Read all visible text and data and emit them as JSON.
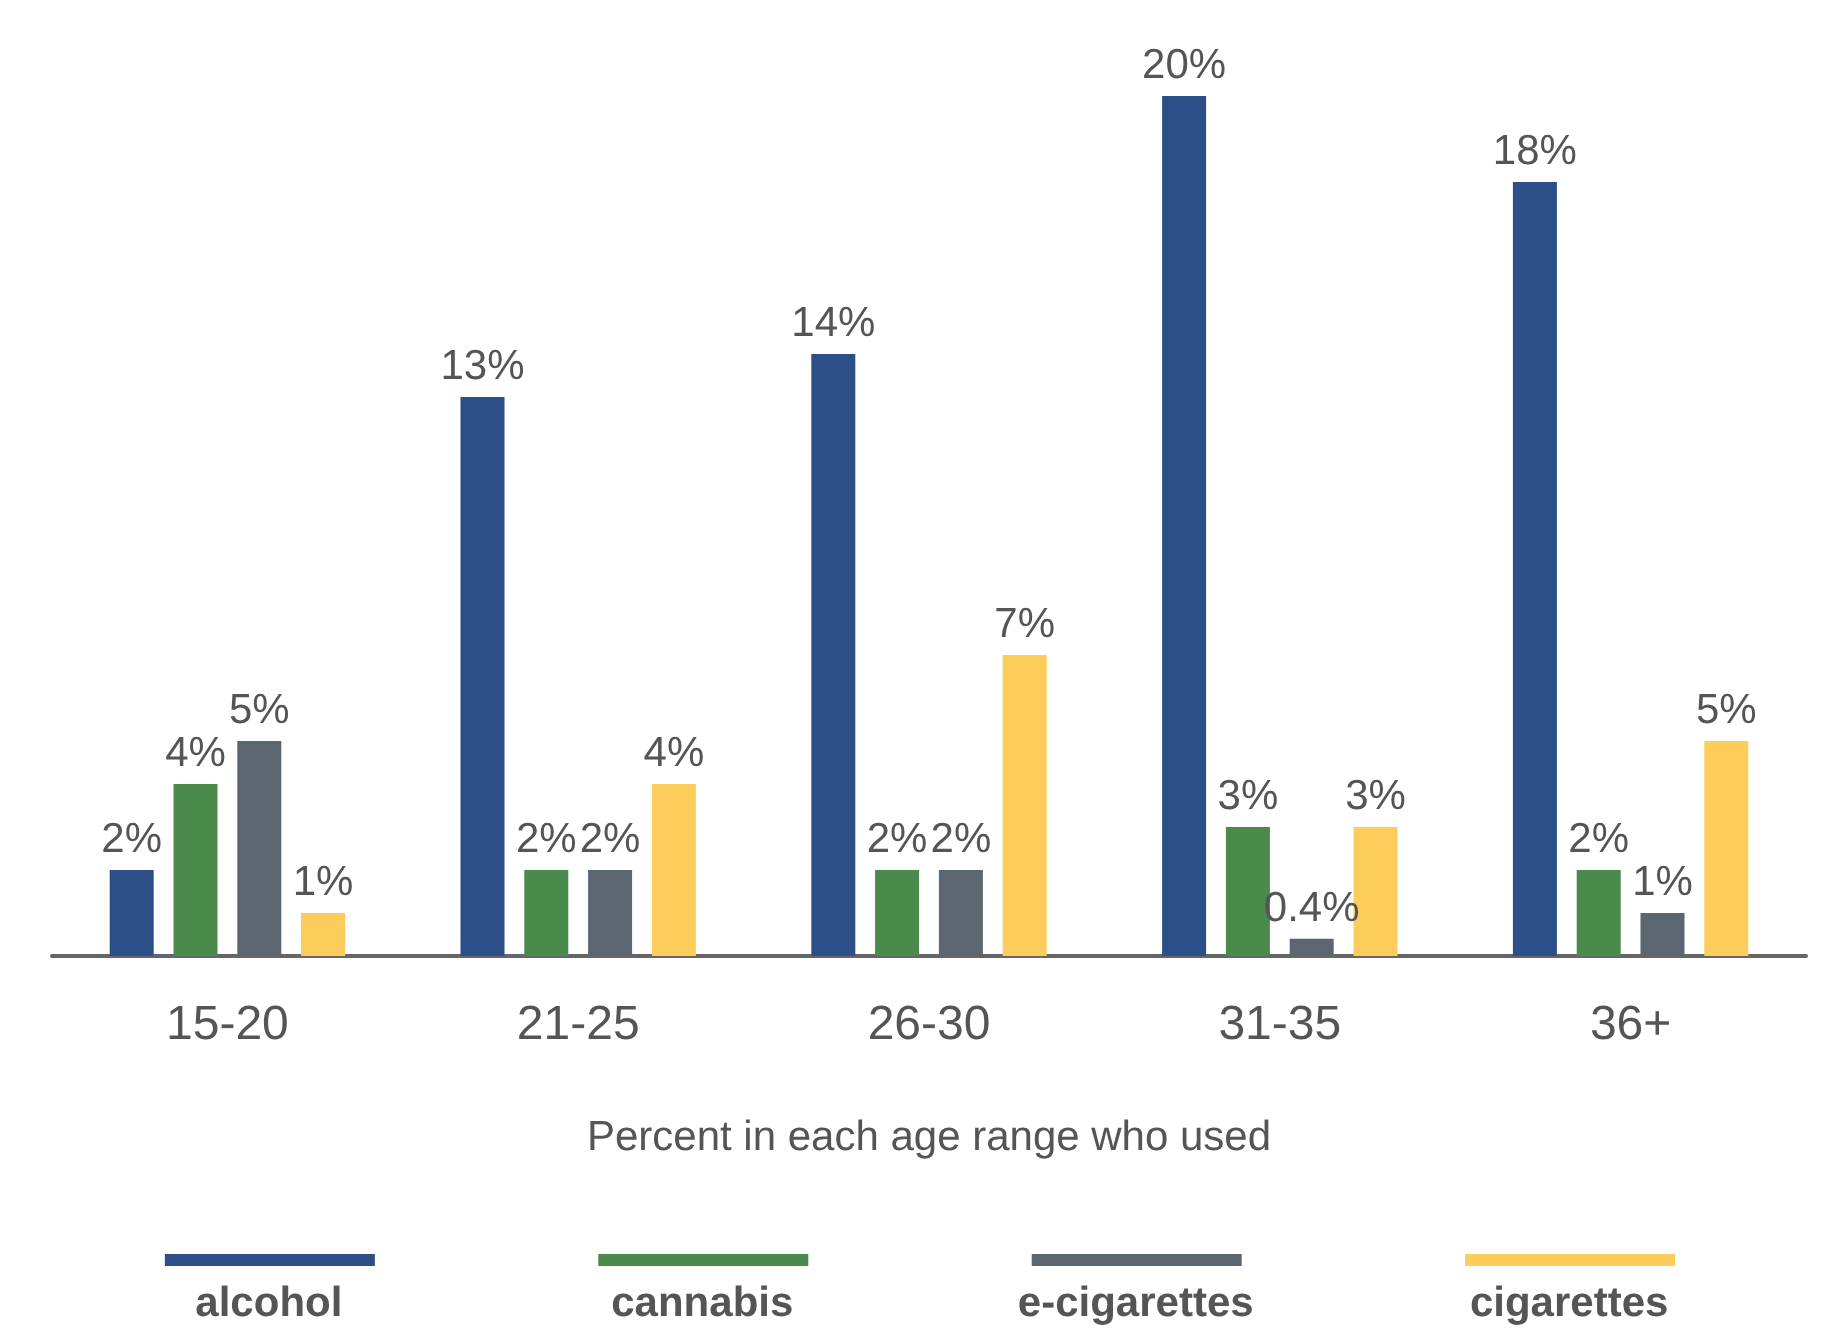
{
  "chart_data": {
    "type": "bar",
    "xlabel": "Percent in each age range who used",
    "categories": [
      "15-20",
      "21-25",
      "26-30",
      "31-35",
      "36+"
    ],
    "legend": "bottom",
    "series": [
      {
        "name": "alcohol",
        "color": "#2b4f86",
        "values": [
          2,
          13,
          14,
          20,
          18
        ],
        "value_labels": [
          "2%",
          "13%",
          "14%",
          "20%",
          "18%"
        ]
      },
      {
        "name": "cannabis",
        "color": "#4a8a4a",
        "values": [
          4,
          2,
          2,
          3,
          2
        ],
        "value_labels": [
          "4%",
          "2%",
          "2%",
          "3%",
          "2%"
        ]
      },
      {
        "name": "e-cigarettes",
        "color": "#5c6670",
        "values": [
          5,
          2,
          2,
          0.4,
          1
        ],
        "value_labels": [
          "5%",
          "2%",
          "2%",
          "0.4%",
          "1%"
        ]
      },
      {
        "name": "cigarettes",
        "color": "#fccd5a",
        "values": [
          1,
          4,
          7,
          3,
          5
        ],
        "value_labels": [
          "1%",
          "4%",
          "7%",
          "3%",
          "5%"
        ]
      }
    ]
  }
}
